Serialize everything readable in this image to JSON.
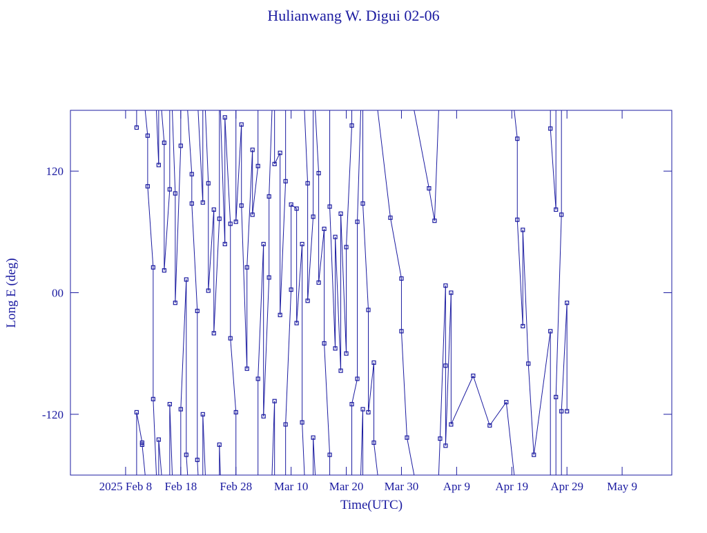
{
  "chart_data": {
    "type": "line",
    "title": "Hulianwang W. Digui 02-06",
    "x_label": "Time(UTC)",
    "y_label": "Long E (deg)",
    "color": "#1a1aa0",
    "xlim": [
      "2025-01-29",
      "2025-05-18"
    ],
    "xticks": [
      {
        "value": "2025-02-08",
        "label": "2025 Feb 8"
      },
      {
        "value": "2025-02-18",
        "label": "Feb 18"
      },
      {
        "value": "2025-02-28",
        "label": "Feb 28"
      },
      {
        "value": "2025-03-10",
        "label": "Mar 10"
      },
      {
        "value": "2025-03-20",
        "label": "Mar 20"
      },
      {
        "value": "2025-03-30",
        "label": "Mar 30"
      },
      {
        "value": "2025-04-09",
        "label": "Apr 9"
      },
      {
        "value": "2025-04-19",
        "label": "Apr 19"
      },
      {
        "value": "2025-04-29",
        "label": "Apr 29"
      },
      {
        "value": "2025-05-09",
        "label": "May 9"
      }
    ],
    "ylim": [
      -180,
      180
    ],
    "yticks": [
      -120,
      {
        "value": 0,
        "label": "00"
      },
      120
    ],
    "x": [
      "2025-02-10",
      "2025-02-10",
      "2025-02-11",
      "2025-02-11",
      "2025-02-12",
      "2025-02-12",
      "2025-02-13",
      "2025-02-13",
      "2025-02-14",
      "2025-02-14",
      "2025-02-15",
      "2025-02-15",
      "2025-02-16",
      "2025-02-16",
      "2025-02-17",
      "2025-02-17",
      "2025-02-18",
      "2025-02-18",
      "2025-02-19",
      "2025-02-19",
      "2025-02-20",
      "2025-02-20",
      "2025-02-21",
      "2025-02-21",
      "2025-02-22",
      "2025-02-22",
      "2025-02-23",
      "2025-02-23",
      "2025-02-24",
      "2025-02-24",
      "2025-02-25",
      "2025-02-25",
      "2025-02-26",
      "2025-02-26",
      "2025-02-27",
      "2025-02-27",
      "2025-02-28",
      "2025-02-28",
      "2025-03-01",
      "2025-03-01",
      "2025-03-02",
      "2025-03-02",
      "2025-03-03",
      "2025-03-03",
      "2025-03-04",
      "2025-03-04",
      "2025-03-05",
      "2025-03-05",
      "2025-03-06",
      "2025-03-06",
      "2025-03-07",
      "2025-03-07",
      "2025-03-08",
      "2025-03-08",
      "2025-03-09",
      "2025-03-09",
      "2025-03-10",
      "2025-03-10",
      "2025-03-11",
      "2025-03-11",
      "2025-03-12",
      "2025-03-12",
      "2025-03-13",
      "2025-03-13",
      "2025-03-14",
      "2025-03-14",
      "2025-03-15",
      "2025-03-15",
      "2025-03-16",
      "2025-03-16",
      "2025-03-17",
      "2025-03-17",
      "2025-03-18",
      "2025-03-18",
      "2025-03-19",
      "2025-03-19",
      "2025-03-20",
      "2025-03-20",
      "2025-03-21",
      "2025-03-21",
      "2025-03-22",
      "2025-03-22",
      "2025-03-23",
      "2025-03-23",
      "2025-03-24",
      "2025-03-24",
      "2025-03-25",
      "2025-03-25",
      "2025-03-28",
      "2025-03-30",
      "2025-03-30",
      "2025-03-31",
      "2025-04-04",
      "2025-04-05",
      "2025-04-06",
      "2025-04-07",
      "2025-04-07",
      "2025-04-07",
      "2025-04-08",
      "2025-04-08",
      "2025-04-12",
      "2025-04-15",
      "2025-04-18",
      "2025-04-20",
      "2025-04-20",
      "2025-04-21",
      "2025-04-21",
      "2025-04-22",
      "2025-04-23",
      "2025-04-26",
      "2025-04-26",
      "2025-04-27",
      "2025-04-27",
      "2025-04-28",
      "2025-04-28",
      "2025-04-29",
      "2025-04-29"
    ],
    "values": [
      163,
      -118,
      -148,
      -150,
      155,
      105,
      25,
      -105,
      126,
      -145,
      148,
      22,
      102,
      -110,
      98,
      -10,
      145,
      -115,
      13,
      -160,
      117,
      88,
      -18,
      -165,
      89,
      -120,
      108,
      2,
      82,
      -40,
      73,
      -150,
      48,
      173,
      68,
      -45,
      -118,
      70,
      166,
      86,
      -75,
      25,
      141,
      77,
      125,
      -85,
      48,
      -122,
      15,
      95,
      -107,
      127,
      138,
      -22,
      110,
      -130,
      3,
      87,
      83,
      -30,
      48,
      -128,
      108,
      -8,
      75,
      -143,
      118,
      10,
      63,
      -50,
      -160,
      85,
      -55,
      55,
      -77,
      78,
      -60,
      45,
      165,
      -110,
      -85,
      70,
      -115,
      88,
      -17,
      -118,
      -69,
      -148,
      74,
      14,
      -38,
      -143,
      103,
      71,
      -144,
      7,
      -72,
      -151,
      0,
      -130,
      -82,
      -131,
      -108,
      152,
      72,
      -33,
      62,
      -70,
      -160,
      -38,
      162,
      82,
      -103,
      77,
      -117,
      -10,
      -117
    ]
  }
}
